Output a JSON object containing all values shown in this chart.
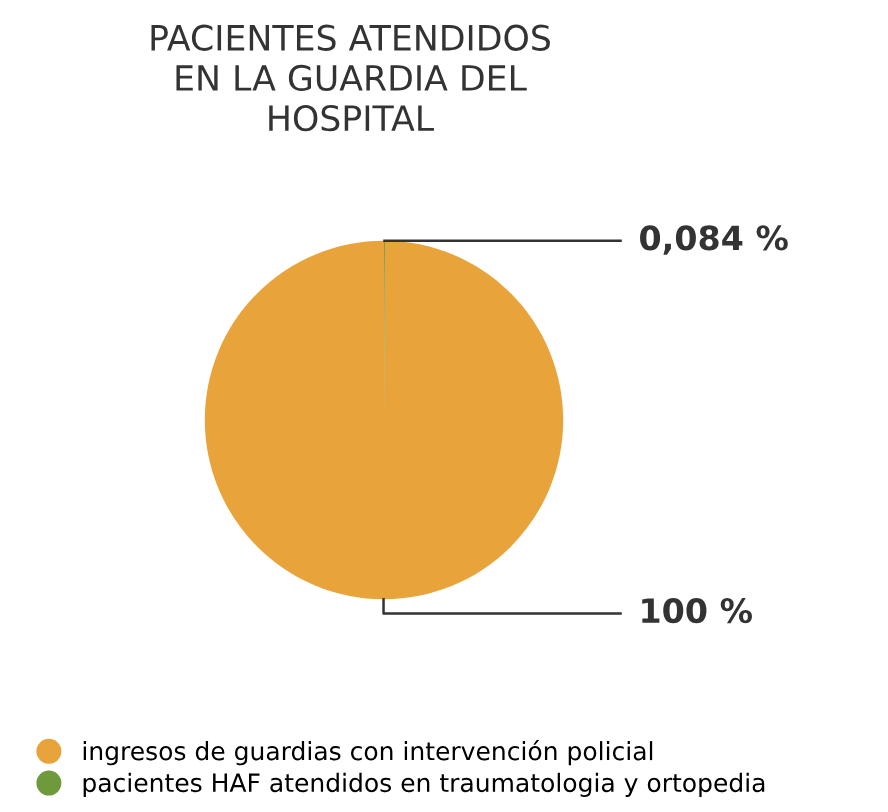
{
  "chart_data": {
    "type": "pie",
    "title": "PACIENTES ATENDIDOS\nEN LA GUARDIA DEL\nHOSPITAL",
    "categories": [
      "ingresos de guardias con intervención policial",
      "pacientes HAF atendidos en traumatologia y ortopedia"
    ],
    "values": [
      100,
      0.084
    ],
    "colors": [
      "#e8a33a",
      "#6f9a3c"
    ],
    "value_labels": [
      "100 %",
      "0,084 %"
    ],
    "legend": "bottom left"
  }
}
